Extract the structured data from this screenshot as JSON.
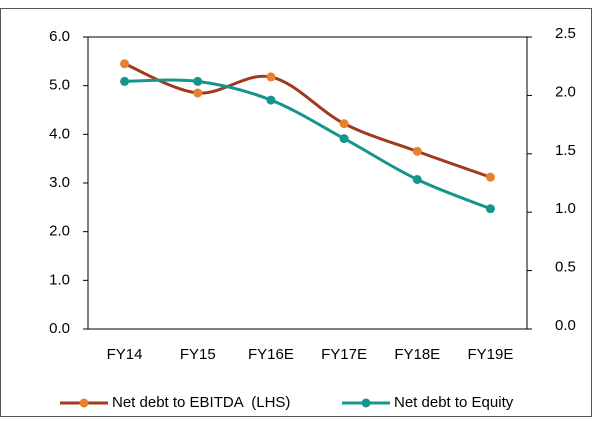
{
  "chart_data": {
    "type": "line",
    "categories": [
      "FY14",
      "FY15",
      "FY16E",
      "FY17E",
      "FY18E",
      "FY19E"
    ],
    "series": [
      {
        "name": "Net debt to EBITDA  (LHS)",
        "color": "#9e3a1e",
        "marker_color": "#e8822e",
        "values": [
          5.45,
          4.85,
          5.18,
          4.22,
          3.65,
          3.12
        ]
      },
      {
        "name": "Net debt to Equity",
        "color": "#16958c",
        "marker_color": "#16958c",
        "axis": "y2",
        "values": [
          2.12,
          2.12,
          1.96,
          1.63,
          1.28,
          1.03
        ]
      }
    ],
    "ylim": [
      0,
      6
    ],
    "yticks": [
      {
        "value": 0,
        "label": "0.0"
      },
      {
        "value": 1,
        "label": "1.0"
      },
      {
        "value": 2,
        "label": "2.0"
      },
      {
        "value": 3,
        "label": "3.0"
      },
      {
        "value": 4,
        "label": "4.0"
      },
      {
        "value": 5,
        "label": "5.0"
      },
      {
        "value": 6,
        "label": "6.0"
      }
    ],
    "y2lim": [
      0,
      2.5
    ],
    "y2ticks": [
      {
        "value": 0,
        "label": "0.0"
      },
      0.5,
      {
        "value": 1,
        "label": "1.0"
      },
      1.5,
      {
        "value": 2,
        "label": "2.0"
      },
      2.5
    ],
    "grid": false,
    "legend": "bottom"
  }
}
